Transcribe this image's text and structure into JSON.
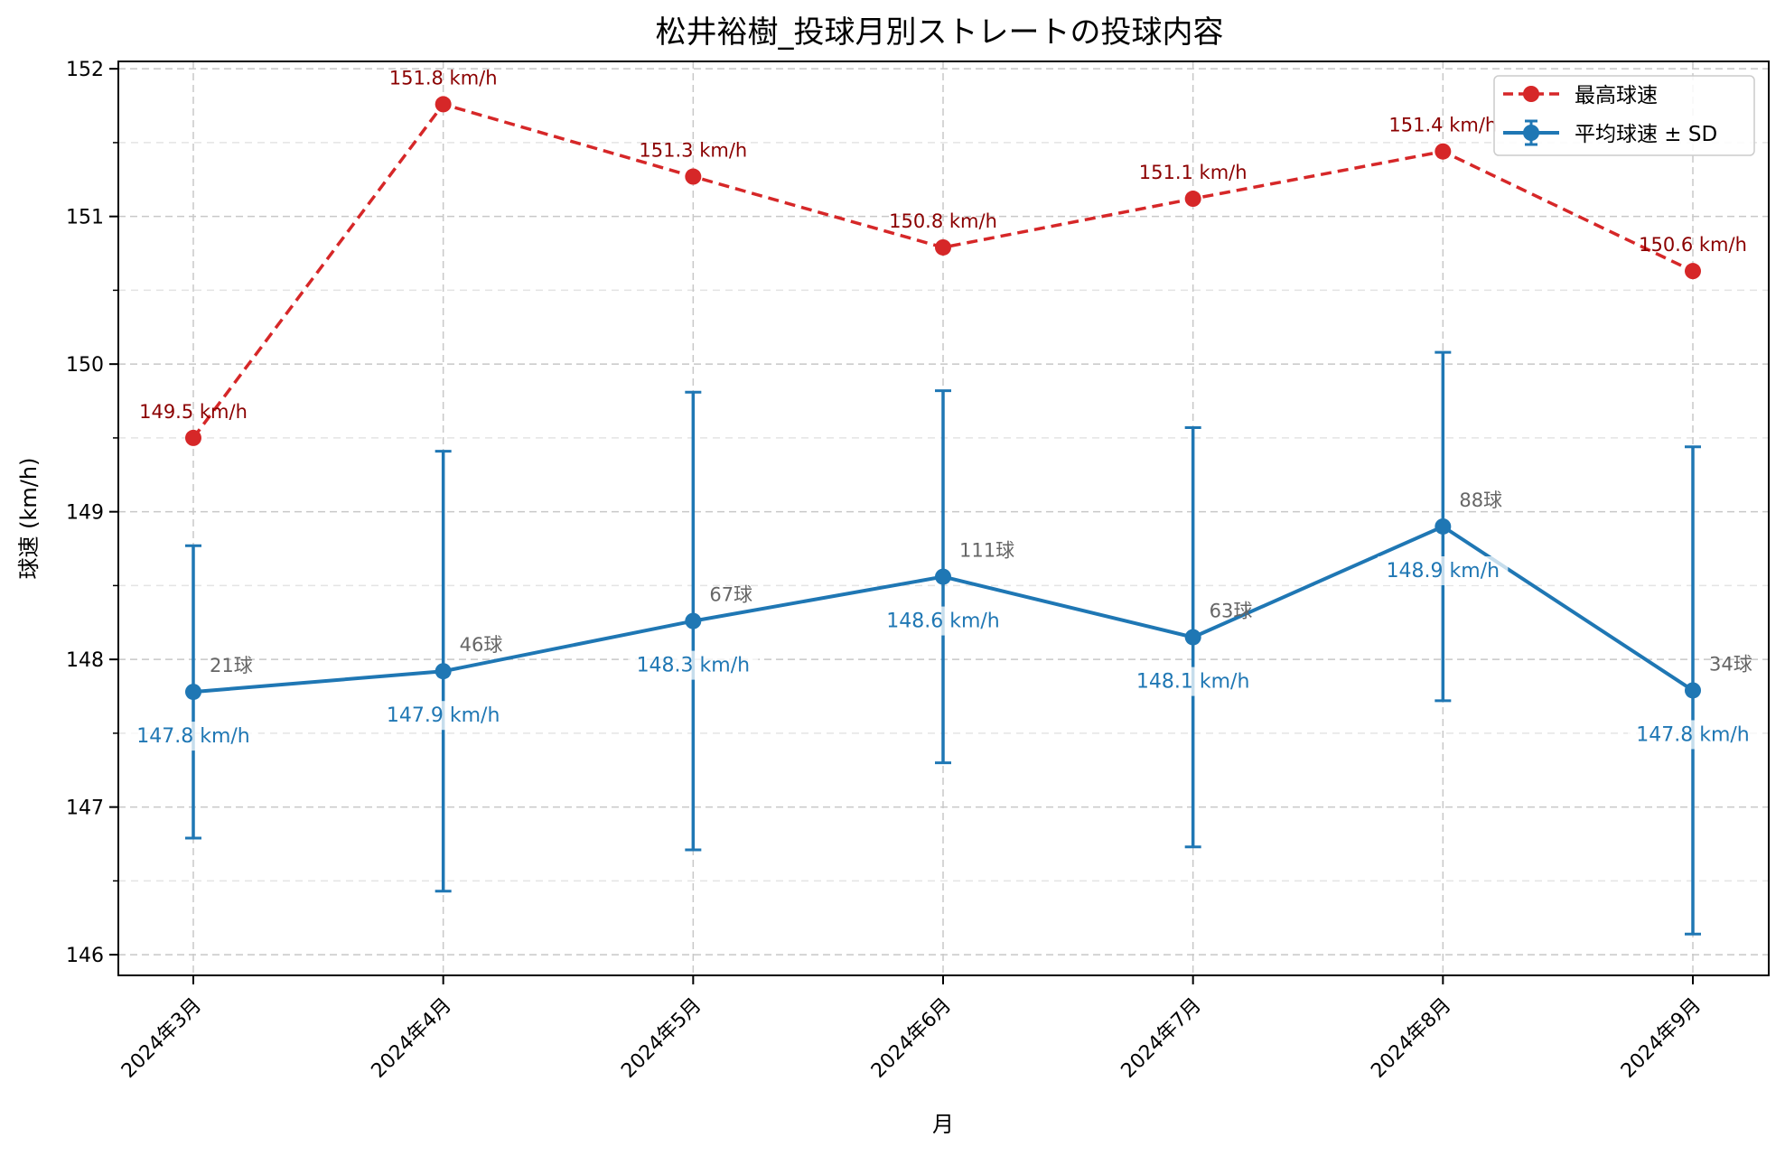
{
  "chart_data": {
    "type": "line",
    "title": "松井裕樹_投球月別ストレートの投球内容",
    "xlabel": "月",
    "ylabel": "球速 (km/h)",
    "ylim": [
      145.86,
      152.05
    ],
    "yticks": [
      146,
      147,
      148,
      149,
      150,
      151,
      152
    ],
    "categories": [
      "2024年3月",
      "2024年4月",
      "2024年5月",
      "2024年6月",
      "2024年7月",
      "2024年8月",
      "2024年9月"
    ],
    "grid": true,
    "legend_position": "top-right",
    "series": [
      {
        "name": "最高球速",
        "style": "dashed",
        "color": "#d62728",
        "values": [
          149.5,
          151.76,
          151.27,
          150.79,
          151.12,
          151.44,
          150.63
        ],
        "labels": [
          "149.5 km/h",
          "151.8 km/h",
          "151.3 km/h",
          "150.8 km/h",
          "151.1 km/h",
          "151.4 km/h",
          "150.6 km/h"
        ]
      },
      {
        "name": "平均球速 ± SD",
        "style": "solid",
        "color": "#1f77b4",
        "values": [
          147.78,
          147.92,
          148.26,
          148.56,
          148.15,
          148.9,
          147.79
        ],
        "sd": [
          0.99,
          1.49,
          1.55,
          1.26,
          1.42,
          1.18,
          1.65
        ],
        "labels": [
          "147.8 km/h",
          "147.9 km/h",
          "148.3 km/h",
          "148.6 km/h",
          "148.1 km/h",
          "148.9 km/h",
          "147.8 km/h"
        ],
        "counts": [
          "21球",
          "46球",
          "67球",
          "111球",
          "63球",
          "88球",
          "34球"
        ]
      }
    ]
  }
}
